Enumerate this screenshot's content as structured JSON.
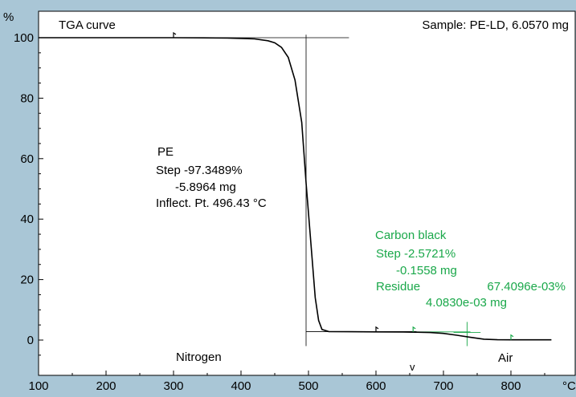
{
  "chart_data": {
    "type": "line",
    "title": "TGA curve",
    "sample": "Sample: PE-LD, 6.0570 mg",
    "ylabel": "%",
    "xlabel": "°C",
    "xlim": [
      100,
      860
    ],
    "ylim": [
      -8,
      105
    ],
    "x_ticks": [
      "100",
      "200",
      "300",
      "400",
      "500",
      "600",
      "700",
      "800"
    ],
    "y_ticks": [
      "0",
      "20",
      "40",
      "60",
      "80",
      "100"
    ],
    "series": [
      {
        "color": "#000000",
        "x": [
          100,
          200,
          300,
          380,
          420,
          440,
          450,
          460,
          470,
          480,
          490,
          496.43,
          500,
          505,
          510,
          515,
          520,
          530,
          560,
          600,
          640,
          660,
          680,
          700,
          720,
          740,
          760,
          780,
          800,
          860
        ],
        "y": [
          100.0,
          100.0,
          100.0,
          99.9,
          99.6,
          99.0,
          98.3,
          96.8,
          93.5,
          86.0,
          72.0,
          52.0,
          42.0,
          28.0,
          14.0,
          6.5,
          3.5,
          2.8,
          2.75,
          2.7,
          2.65,
          2.6,
          2.5,
          2.2,
          1.6,
          0.9,
          0.3,
          0.1,
          0.07,
          0.07
        ]
      }
    ],
    "annotations": {
      "pe": {
        "name": "PE",
        "step": "Step -97.3489%",
        "mass": "-5.8964 mg",
        "inflect": "Inflect. Pt. 496.43 °C",
        "color": "#000000"
      },
      "carbon": {
        "name": "Carbon black",
        "step": "Step -2.5721%",
        "mass": "-0.1558 mg",
        "residue_label": "Residue",
        "residue_pct": "67.4096e-03%",
        "residue_mg": "4.0830e-03 mg",
        "color": "#1aa84a"
      }
    },
    "atmosphere": {
      "nitrogen": "Nitrogen",
      "air": "Air",
      "switch_mark": "v"
    },
    "colors": {
      "background": "#a9c6d6",
      "plot": "#ffffff",
      "axis": "#000000",
      "accent": "#1aa84a"
    }
  }
}
